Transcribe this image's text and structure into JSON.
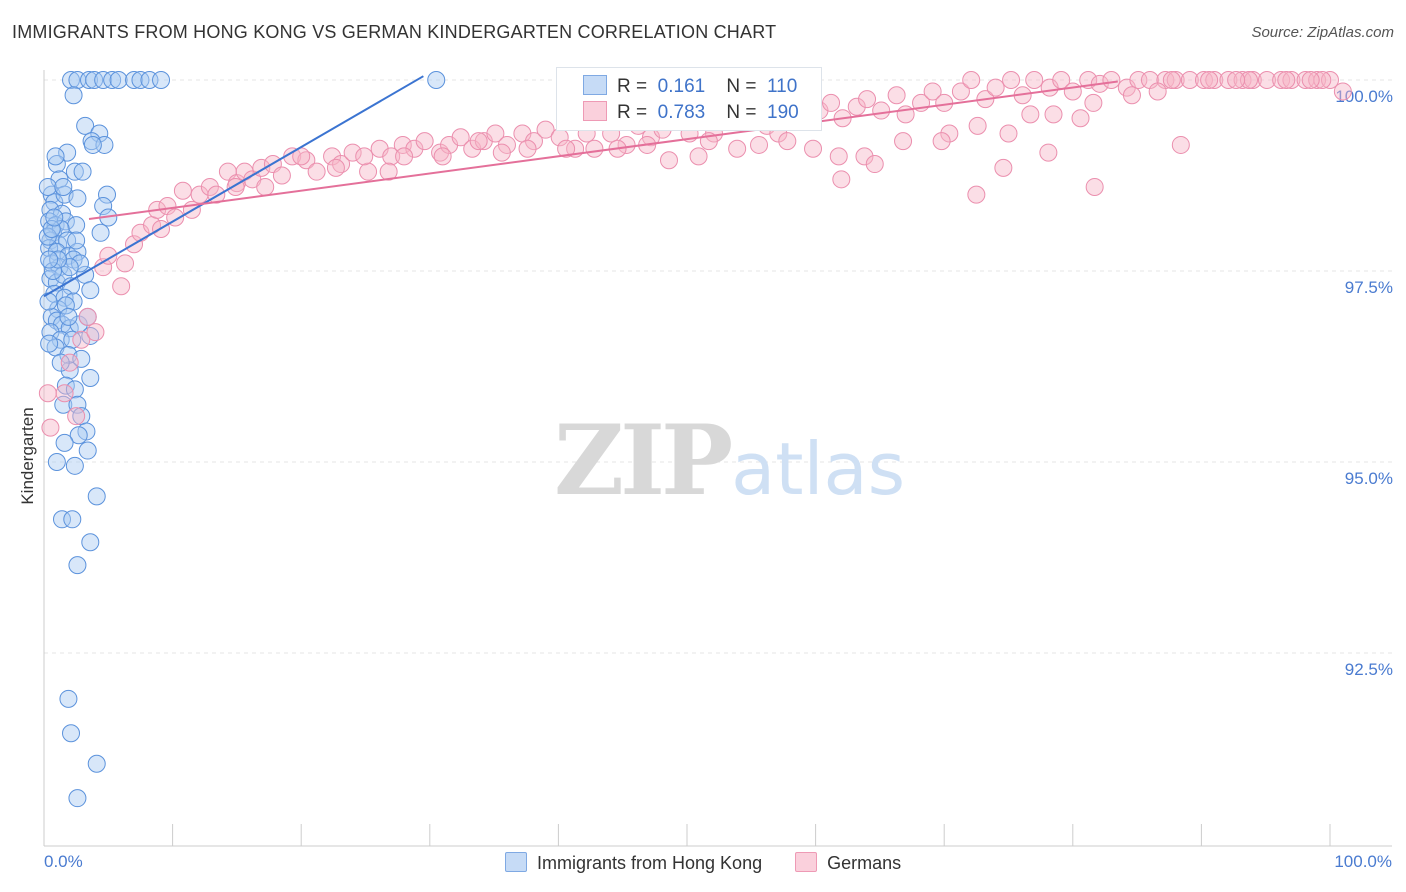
{
  "header": {
    "title": "IMMIGRANTS FROM HONG KONG VS GERMAN KINDERGARTEN CORRELATION CHART",
    "source": "Source: ZipAtlas.com"
  },
  "watermark": {
    "zip": "ZIP",
    "atlas": "atlas"
  },
  "legend": {
    "rows": [
      {
        "r_label": "R =",
        "r_value": "0.161",
        "n_label": "N =",
        "n_value": "110",
        "color": "#a9c9f2"
      },
      {
        "r_label": "R =",
        "r_value": "0.783",
        "n_label": "N =",
        "n_value": "190",
        "color": "#f6b6c8"
      }
    ]
  },
  "bottom_legend": [
    {
      "label": "Immigrants from Hong Kong",
      "color": "#a9c9f2"
    },
    {
      "label": "Germans",
      "color": "#f6b6c8"
    }
  ],
  "chart_data": {
    "type": "scatter",
    "title": "IMMIGRANTS FROM HONG KONG VS GERMAN KINDERGARTEN CORRELATION CHART",
    "xlabel": "",
    "ylabel": "Kindergarten",
    "x_tick_labels": [
      "0.0%",
      "100.0%"
    ],
    "y_tick_labels": [
      "92.5%",
      "95.0%",
      "97.5%",
      "100.0%"
    ],
    "y_ticks": [
      92.5,
      95.0,
      97.5,
      100.0
    ],
    "xlim": [
      0,
      100
    ],
    "ylim": [
      90.2,
      100.2
    ],
    "grid": true,
    "legend_position": "top-center",
    "colors": {
      "hong_kong": "#4a86d8",
      "germans": "#e8779c",
      "hong_kong_fill": "#a9c9f2",
      "germans_fill": "#f6b6c8"
    },
    "series": [
      {
        "name": "Immigrants from Hong Kong",
        "R": 0.161,
        "N": 110,
        "trend": {
          "x": [
            0.0,
            29.5
          ],
          "y": [
            97.17,
            100.05
          ]
        },
        "points": [
          [
            2.1,
            100.0
          ],
          [
            2.6,
            100.0
          ],
          [
            3.5,
            100.0
          ],
          [
            3.9,
            100.0
          ],
          [
            4.6,
            100.0
          ],
          [
            5.3,
            100.0
          ],
          [
            5.8,
            100.0
          ],
          [
            7.0,
            100.0
          ],
          [
            7.5,
            100.0
          ],
          [
            8.2,
            100.0
          ],
          [
            9.1,
            100.0
          ],
          [
            30.5,
            100.0
          ],
          [
            2.3,
            99.8
          ],
          [
            3.2,
            99.4
          ],
          [
            4.3,
            99.3
          ],
          [
            3.7,
            99.2
          ],
          [
            4.7,
            99.15
          ],
          [
            1.8,
            99.05
          ],
          [
            1.0,
            98.9
          ],
          [
            2.4,
            98.8
          ],
          [
            1.2,
            98.7
          ],
          [
            0.6,
            98.5
          ],
          [
            0.8,
            98.4
          ],
          [
            1.6,
            98.5
          ],
          [
            2.6,
            98.45
          ],
          [
            4.9,
            98.5
          ],
          [
            4.6,
            98.35
          ],
          [
            5.0,
            98.2
          ],
          [
            0.5,
            98.3
          ],
          [
            1.4,
            98.25
          ],
          [
            0.4,
            98.15
          ],
          [
            0.9,
            98.1
          ],
          [
            1.7,
            98.15
          ],
          [
            2.5,
            98.1
          ],
          [
            0.7,
            98.0
          ],
          [
            1.3,
            98.05
          ],
          [
            0.5,
            97.9
          ],
          [
            1.1,
            97.85
          ],
          [
            1.8,
            97.9
          ],
          [
            0.4,
            97.8
          ],
          [
            1.0,
            97.75
          ],
          [
            1.9,
            97.7
          ],
          [
            2.6,
            97.75
          ],
          [
            0.6,
            97.6
          ],
          [
            1.2,
            97.55
          ],
          [
            2.3,
            97.65
          ],
          [
            0.5,
            97.4
          ],
          [
            1.0,
            97.35
          ],
          [
            1.5,
            97.45
          ],
          [
            2.1,
            97.3
          ],
          [
            3.2,
            97.45
          ],
          [
            0.8,
            97.2
          ],
          [
            1.6,
            97.15
          ],
          [
            2.3,
            97.1
          ],
          [
            1.1,
            97.0
          ],
          [
            1.7,
            97.05
          ],
          [
            0.6,
            96.9
          ],
          [
            1.0,
            96.85
          ],
          [
            1.4,
            96.8
          ],
          [
            2.0,
            96.75
          ],
          [
            2.7,
            96.8
          ],
          [
            3.4,
            96.9
          ],
          [
            0.5,
            96.7
          ],
          [
            1.3,
            96.6
          ],
          [
            2.2,
            96.6
          ],
          [
            3.6,
            96.65
          ],
          [
            0.9,
            96.5
          ],
          [
            1.9,
            96.4
          ],
          [
            2.9,
            96.35
          ],
          [
            2.0,
            96.2
          ],
          [
            3.6,
            96.1
          ],
          [
            1.7,
            96.0
          ],
          [
            2.4,
            95.95
          ],
          [
            1.5,
            95.75
          ],
          [
            2.6,
            95.75
          ],
          [
            2.9,
            95.6
          ],
          [
            3.3,
            95.4
          ],
          [
            2.7,
            95.35
          ],
          [
            1.6,
            95.25
          ],
          [
            3.4,
            95.15
          ],
          [
            1.0,
            95.0
          ],
          [
            2.4,
            94.95
          ],
          [
            4.1,
            94.55
          ],
          [
            1.4,
            94.25
          ],
          [
            2.2,
            94.25
          ],
          [
            3.6,
            93.95
          ],
          [
            2.6,
            93.65
          ],
          [
            1.9,
            91.9
          ],
          [
            2.1,
            91.45
          ],
          [
            4.1,
            91.05
          ],
          [
            2.6,
            90.6
          ],
          [
            0.3,
            98.6
          ],
          [
            0.3,
            97.95
          ],
          [
            0.35,
            97.1
          ],
          [
            0.4,
            96.55
          ],
          [
            0.6,
            98.05
          ],
          [
            0.7,
            97.5
          ],
          [
            1.5,
            98.6
          ],
          [
            2.8,
            97.6
          ],
          [
            3.6,
            97.25
          ],
          [
            0.9,
            99.0
          ],
          [
            4.4,
            98.0
          ],
          [
            1.3,
            96.3
          ],
          [
            2.0,
            97.55
          ],
          [
            3.0,
            98.8
          ],
          [
            0.8,
            98.2
          ],
          [
            1.1,
            97.65
          ],
          [
            1.9,
            96.9
          ],
          [
            2.5,
            97.9
          ],
          [
            3.8,
            99.15
          ],
          [
            0.4,
            97.65
          ]
        ]
      },
      {
        "name": "Germans",
        "R": 0.783,
        "N": 190,
        "trend": {
          "x": [
            3.5,
            83.5
          ],
          "y": [
            98.18,
            99.98
          ]
        },
        "points": [
          [
            0.3,
            95.9
          ],
          [
            0.5,
            95.45
          ],
          [
            2.0,
            96.3
          ],
          [
            2.5,
            95.6
          ],
          [
            2.9,
            96.6
          ],
          [
            4.0,
            96.7
          ],
          [
            1.6,
            95.9
          ],
          [
            3.4,
            96.9
          ],
          [
            4.6,
            97.55
          ],
          [
            5.0,
            97.7
          ],
          [
            6.0,
            97.3
          ],
          [
            6.3,
            97.6
          ],
          [
            7.0,
            97.85
          ],
          [
            7.5,
            98.0
          ],
          [
            8.4,
            98.1
          ],
          [
            8.8,
            98.3
          ],
          [
            9.6,
            98.35
          ],
          [
            10.2,
            98.2
          ],
          [
            10.8,
            98.55
          ],
          [
            11.5,
            98.3
          ],
          [
            12.1,
            98.5
          ],
          [
            12.9,
            98.6
          ],
          [
            13.4,
            98.5
          ],
          [
            14.3,
            98.8
          ],
          [
            15.0,
            98.65
          ],
          [
            15.6,
            98.8
          ],
          [
            16.2,
            98.7
          ],
          [
            16.9,
            98.85
          ],
          [
            17.8,
            98.9
          ],
          [
            18.5,
            98.75
          ],
          [
            19.3,
            99.0
          ],
          [
            20.4,
            98.95
          ],
          [
            21.2,
            98.8
          ],
          [
            22.4,
            99.0
          ],
          [
            23.1,
            98.9
          ],
          [
            24.0,
            99.05
          ],
          [
            25.2,
            98.8
          ],
          [
            26.1,
            99.1
          ],
          [
            27.0,
            99.0
          ],
          [
            27.9,
            99.15
          ],
          [
            28.8,
            99.1
          ],
          [
            29.6,
            99.2
          ],
          [
            30.8,
            99.05
          ],
          [
            31.5,
            99.15
          ],
          [
            32.4,
            99.25
          ],
          [
            33.3,
            99.1
          ],
          [
            34.2,
            99.2
          ],
          [
            35.1,
            99.3
          ],
          [
            36.0,
            99.15
          ],
          [
            37.2,
            99.3
          ],
          [
            38.1,
            99.2
          ],
          [
            39.0,
            99.35
          ],
          [
            40.1,
            99.25
          ],
          [
            41.3,
            99.1
          ],
          [
            42.2,
            99.3
          ],
          [
            43.0,
            99.45
          ],
          [
            44.1,
            99.3
          ],
          [
            45.3,
            99.15
          ],
          [
            46.2,
            99.4
          ],
          [
            47.2,
            99.25
          ],
          [
            48.1,
            99.35
          ],
          [
            49.0,
            99.5
          ],
          [
            50.2,
            99.3
          ],
          [
            51.0,
            99.45
          ],
          [
            52.1,
            99.3
          ],
          [
            53.3,
            99.5
          ],
          [
            54.2,
            99.45
          ],
          [
            55.0,
            99.6
          ],
          [
            56.2,
            99.4
          ],
          [
            57.1,
            99.3
          ],
          [
            58.4,
            99.55
          ],
          [
            59.1,
            99.45
          ],
          [
            60.3,
            99.6
          ],
          [
            61.2,
            99.7
          ],
          [
            62.1,
            99.5
          ],
          [
            63.2,
            99.65
          ],
          [
            64.0,
            99.75
          ],
          [
            65.1,
            99.6
          ],
          [
            66.3,
            99.8
          ],
          [
            67.0,
            99.55
          ],
          [
            68.2,
            99.7
          ],
          [
            69.1,
            99.85
          ],
          [
            70.0,
            99.7
          ],
          [
            71.3,
            99.85
          ],
          [
            72.1,
            100.0
          ],
          [
            73.2,
            99.75
          ],
          [
            74.0,
            99.9
          ],
          [
            75.2,
            100.0
          ],
          [
            76.1,
            99.8
          ],
          [
            77.0,
            100.0
          ],
          [
            78.2,
            99.9
          ],
          [
            79.1,
            100.0
          ],
          [
            80.0,
            99.85
          ],
          [
            81.2,
            100.0
          ],
          [
            82.1,
            99.95
          ],
          [
            83.0,
            100.0
          ],
          [
            84.2,
            99.9
          ],
          [
            85.1,
            100.0
          ],
          [
            86.0,
            100.0
          ],
          [
            87.2,
            100.0
          ],
          [
            88.0,
            100.0
          ],
          [
            89.1,
            100.0
          ],
          [
            90.2,
            100.0
          ],
          [
            91.0,
            100.0
          ],
          [
            92.1,
            100.0
          ],
          [
            93.2,
            100.0
          ],
          [
            94.0,
            100.0
          ],
          [
            95.1,
            100.0
          ],
          [
            96.2,
            100.0
          ],
          [
            97.0,
            100.0
          ],
          [
            98.1,
            100.0
          ],
          [
            99.0,
            100.0
          ],
          [
            100.0,
            100.0
          ],
          [
            101.0,
            99.85
          ],
          [
            14.9,
            98.6
          ],
          [
            22.7,
            98.85
          ],
          [
            28.0,
            99.0
          ],
          [
            33.8,
            99.2
          ],
          [
            40.6,
            99.1
          ],
          [
            46.9,
            99.15
          ],
          [
            51.7,
            99.2
          ],
          [
            57.8,
            99.2
          ],
          [
            63.8,
            99.0
          ],
          [
            70.4,
            99.3
          ],
          [
            76.7,
            99.55
          ],
          [
            81.6,
            99.7
          ],
          [
            87.7,
            100.0
          ],
          [
            93.7,
            100.0
          ],
          [
            99.4,
            100.0
          ],
          [
            9.1,
            98.05
          ],
          [
            17.2,
            98.6
          ],
          [
            24.9,
            99.0
          ],
          [
            31.0,
            99.0
          ],
          [
            37.6,
            99.1
          ],
          [
            44.6,
            99.1
          ],
          [
            50.9,
            99.0
          ],
          [
            55.6,
            99.15
          ],
          [
            61.8,
            99.0
          ],
          [
            66.8,
            99.2
          ],
          [
            72.6,
            99.4
          ],
          [
            78.5,
            99.55
          ],
          [
            84.6,
            99.8
          ],
          [
            90.6,
            100.0
          ],
          [
            96.6,
            100.0
          ],
          [
            20.0,
            99.0
          ],
          [
            26.8,
            98.8
          ],
          [
            35.6,
            99.05
          ],
          [
            42.8,
            99.1
          ],
          [
            48.6,
            98.95
          ],
          [
            53.9,
            99.1
          ],
          [
            59.8,
            99.1
          ],
          [
            64.6,
            98.9
          ],
          [
            69.8,
            99.2
          ],
          [
            75.0,
            99.3
          ],
          [
            80.6,
            99.5
          ],
          [
            86.6,
            99.85
          ],
          [
            92.7,
            100.0
          ],
          [
            98.5,
            100.0
          ],
          [
            72.5,
            98.5
          ],
          [
            62.0,
            98.7
          ],
          [
            74.6,
            98.85
          ],
          [
            78.1,
            99.05
          ],
          [
            81.7,
            98.6
          ],
          [
            88.4,
            99.15
          ]
        ]
      }
    ]
  }
}
